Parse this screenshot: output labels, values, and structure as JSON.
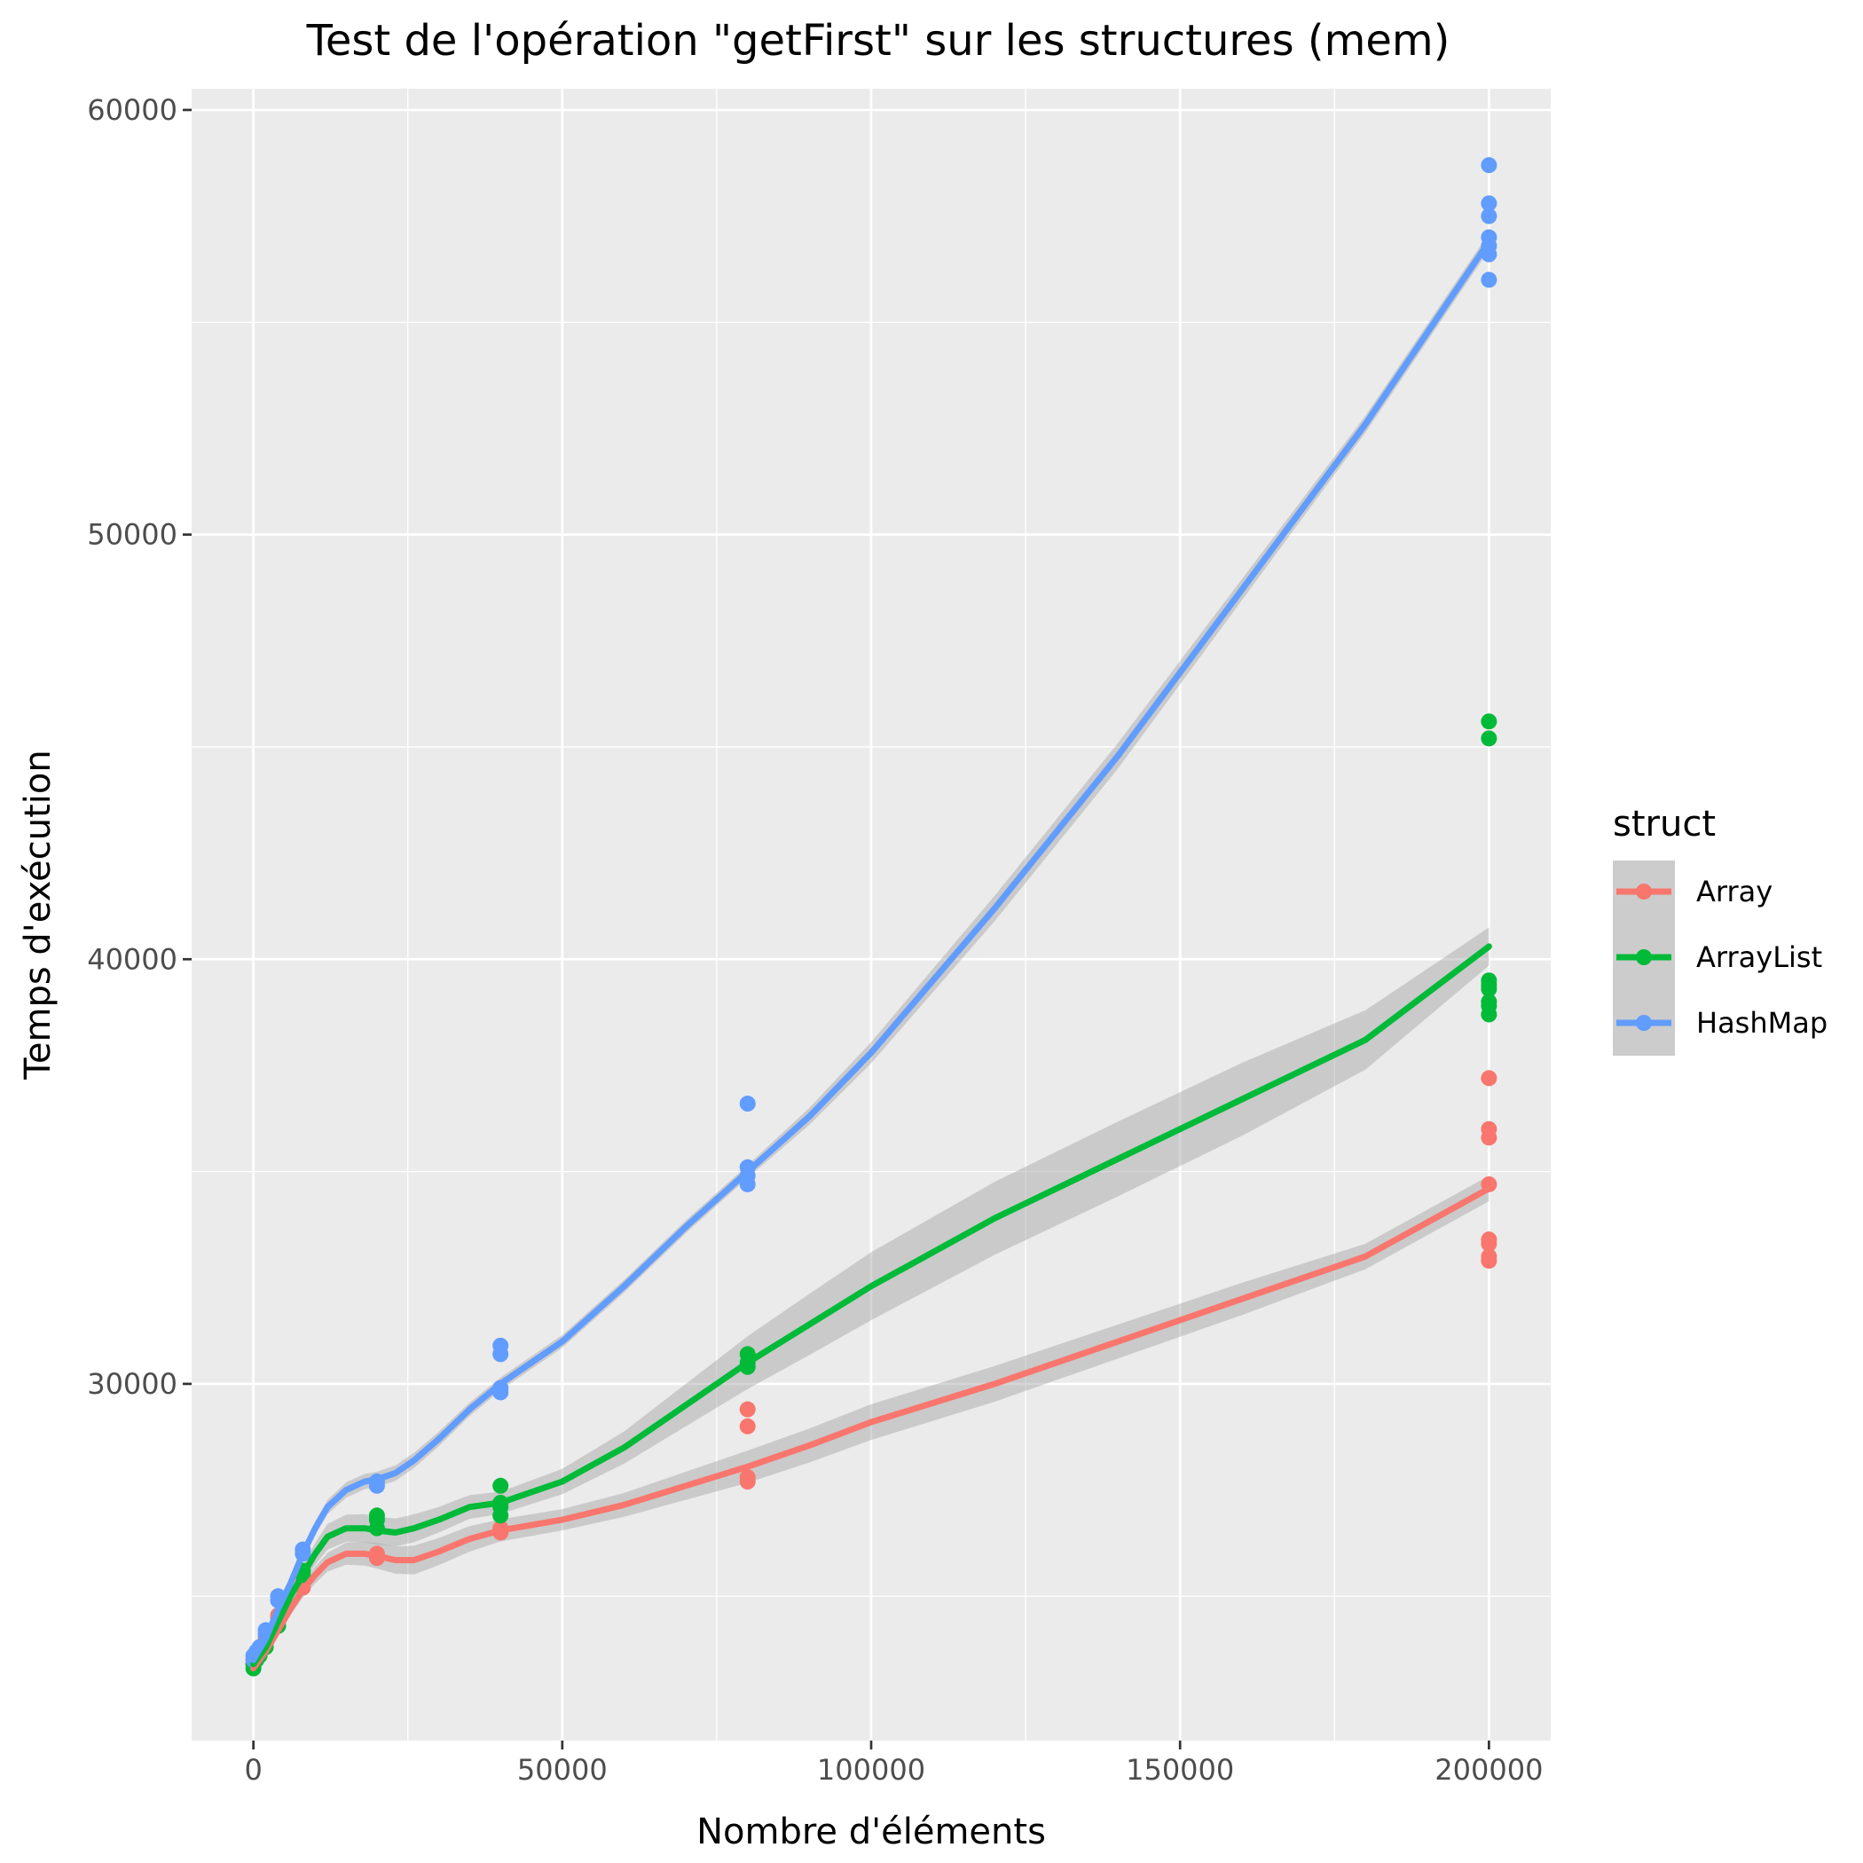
{
  "chart_data": {
    "type": "scatter",
    "title": "Test de l'opération \"getFirst\" sur les structures (mem)",
    "xlabel": "Nombre d'éléments",
    "ylabel": "Temps d'exécution",
    "xlim": [
      -10000,
      210000
    ],
    "ylim": [
      21600,
      60500
    ],
    "x_ticks": [
      0,
      50000,
      100000,
      150000,
      200000
    ],
    "x_tick_labels": [
      "0",
      "50000",
      "100000",
      "150000",
      "200000"
    ],
    "y_ticks": [
      30000,
      40000,
      50000,
      60000
    ],
    "y_tick_labels": [
      "30000",
      "40000",
      "50000",
      "60000"
    ],
    "x_minor_ticks": [
      25000,
      75000,
      125000,
      175000
    ],
    "y_minor_ticks": [
      25000,
      35000,
      45000,
      55000
    ],
    "grid": true,
    "legend": {
      "title": "struct",
      "position": "right"
    },
    "series": [
      {
        "name": "Array",
        "color": "#F8766D",
        "points": [
          [
            0,
            23400
          ],
          [
            0,
            23500
          ],
          [
            500,
            23550
          ],
          [
            1000,
            23650
          ],
          [
            2000,
            23900
          ],
          [
            2000,
            24000
          ],
          [
            4000,
            24500
          ],
          [
            4000,
            24550
          ],
          [
            8000,
            25200
          ],
          [
            8000,
            25300
          ],
          [
            20000,
            25900
          ],
          [
            20000,
            26000
          ],
          [
            40000,
            26500
          ],
          [
            40000,
            26600
          ],
          [
            80000,
            27700
          ],
          [
            80000,
            27800
          ],
          [
            80000,
            29000
          ],
          [
            80000,
            29400
          ],
          [
            200000,
            32900
          ],
          [
            200000,
            33000
          ],
          [
            200000,
            33300
          ],
          [
            200000,
            33400
          ],
          [
            200000,
            34700
          ],
          [
            200000,
            35800
          ],
          [
            200000,
            36000
          ],
          [
            200000,
            37200
          ]
        ],
        "smooth": [
          [
            0,
            23300
          ],
          [
            2000,
            23700
          ],
          [
            4000,
            24200
          ],
          [
            6000,
            24700
          ],
          [
            8000,
            25150
          ],
          [
            10000,
            25500
          ],
          [
            12000,
            25800
          ],
          [
            15000,
            26000
          ],
          [
            18000,
            26000
          ],
          [
            20000,
            25950
          ],
          [
            23000,
            25850
          ],
          [
            26000,
            25850
          ],
          [
            30000,
            26050
          ],
          [
            35000,
            26350
          ],
          [
            40000,
            26550
          ],
          [
            50000,
            26800
          ],
          [
            60000,
            27150
          ],
          [
            70000,
            27600
          ],
          [
            80000,
            28050
          ],
          [
            90000,
            28550
          ],
          [
            100000,
            29100
          ],
          [
            120000,
            30000
          ],
          [
            140000,
            31000
          ],
          [
            160000,
            32000
          ],
          [
            180000,
            33000
          ],
          [
            200000,
            34600
          ]
        ],
        "band_halfwidth": [
          150,
          150,
          150,
          150,
          180,
          200,
          220,
          260,
          280,
          300,
          320,
          340,
          320,
          300,
          260,
          250,
          280,
          330,
          380,
          400,
          420,
          420,
          400,
          380,
          300,
          300
        ]
      },
      {
        "name": "ArrayList",
        "color": "#00BA38",
        "points": [
          [
            0,
            23300
          ],
          [
            0,
            23400
          ],
          [
            500,
            23500
          ],
          [
            1000,
            23600
          ],
          [
            2000,
            23800
          ],
          [
            2000,
            23900
          ],
          [
            4000,
            24300
          ],
          [
            4000,
            24400
          ],
          [
            8000,
            25500
          ],
          [
            8000,
            25600
          ],
          [
            20000,
            26600
          ],
          [
            20000,
            26800
          ],
          [
            20000,
            26900
          ],
          [
            40000,
            26900
          ],
          [
            40000,
            27100
          ],
          [
            40000,
            27200
          ],
          [
            40000,
            27600
          ],
          [
            80000,
            30400
          ],
          [
            80000,
            30500
          ],
          [
            80000,
            30700
          ],
          [
            200000,
            38700
          ],
          [
            200000,
            38900
          ],
          [
            200000,
            39000
          ],
          [
            200000,
            39300
          ],
          [
            200000,
            39400
          ],
          [
            200000,
            39500
          ],
          [
            200000,
            45200
          ],
          [
            200000,
            45600
          ]
        ],
        "smooth": [
          [
            0,
            23400
          ],
          [
            2000,
            23800
          ],
          [
            4000,
            24400
          ],
          [
            6000,
            25000
          ],
          [
            8000,
            25500
          ],
          [
            10000,
            26000
          ],
          [
            12000,
            26400
          ],
          [
            15000,
            26600
          ],
          [
            18000,
            26600
          ],
          [
            20000,
            26550
          ],
          [
            23000,
            26500
          ],
          [
            26000,
            26600
          ],
          [
            30000,
            26800
          ],
          [
            35000,
            27100
          ],
          [
            40000,
            27200
          ],
          [
            50000,
            27700
          ],
          [
            60000,
            28500
          ],
          [
            70000,
            29500
          ],
          [
            80000,
            30500
          ],
          [
            90000,
            31400
          ],
          [
            100000,
            32300
          ],
          [
            120000,
            33900
          ],
          [
            140000,
            35300
          ],
          [
            160000,
            36700
          ],
          [
            180000,
            38100
          ],
          [
            200000,
            40300
          ]
        ],
        "band_halfwidth": [
          150,
          150,
          150,
          180,
          220,
          260,
          300,
          320,
          330,
          330,
          330,
          330,
          300,
          280,
          260,
          300,
          380,
          500,
          620,
          720,
          800,
          860,
          880,
          860,
          700,
          450
        ]
      },
      {
        "name": "HashMap",
        "color": "#619CFF",
        "points": [
          [
            0,
            23500
          ],
          [
            0,
            23600
          ],
          [
            500,
            23700
          ],
          [
            1000,
            23800
          ],
          [
            2000,
            24100
          ],
          [
            2000,
            24200
          ],
          [
            4000,
            24900
          ],
          [
            4000,
            25000
          ],
          [
            8000,
            26000
          ],
          [
            8000,
            26100
          ],
          [
            20000,
            27600
          ],
          [
            20000,
            27700
          ],
          [
            40000,
            29800
          ],
          [
            40000,
            29900
          ],
          [
            40000,
            30700
          ],
          [
            40000,
            30900
          ],
          [
            80000,
            34700
          ],
          [
            80000,
            34900
          ],
          [
            80000,
            35100
          ],
          [
            80000,
            36600
          ],
          [
            200000,
            56000
          ],
          [
            200000,
            56600
          ],
          [
            200000,
            56800
          ],
          [
            200000,
            57000
          ],
          [
            200000,
            57500
          ],
          [
            200000,
            57800
          ],
          [
            200000,
            58700
          ]
        ],
        "smooth": [
          [
            0,
            23500
          ],
          [
            2000,
            24000
          ],
          [
            4000,
            24700
          ],
          [
            6000,
            25300
          ],
          [
            8000,
            26000
          ],
          [
            10000,
            26600
          ],
          [
            12000,
            27100
          ],
          [
            15000,
            27500
          ],
          [
            18000,
            27700
          ],
          [
            20000,
            27750
          ],
          [
            23000,
            27900
          ],
          [
            26000,
            28200
          ],
          [
            30000,
            28700
          ],
          [
            35000,
            29400
          ],
          [
            40000,
            30000
          ],
          [
            50000,
            31000
          ],
          [
            60000,
            32300
          ],
          [
            70000,
            33700
          ],
          [
            80000,
            35000
          ],
          [
            90000,
            36300
          ],
          [
            100000,
            37800
          ],
          [
            120000,
            41200
          ],
          [
            140000,
            44800
          ],
          [
            160000,
            48700
          ],
          [
            180000,
            52600
          ],
          [
            200000,
            56900
          ]
        ],
        "band_halfwidth": [
          150,
          150,
          150,
          150,
          150,
          160,
          170,
          180,
          180,
          180,
          180,
          180,
          170,
          160,
          150,
          150,
          150,
          150,
          150,
          200,
          250,
          300,
          300,
          250,
          200,
          200
        ]
      }
    ]
  }
}
